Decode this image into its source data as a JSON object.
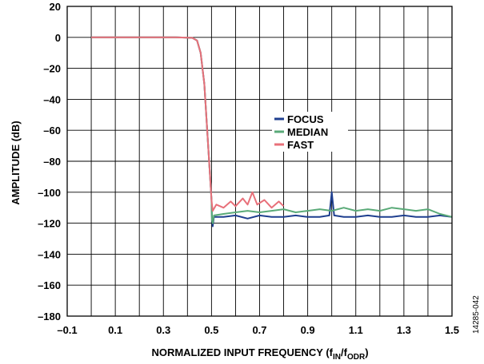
{
  "figure_id": "14285-042",
  "chart_data": {
    "type": "line",
    "xlabel": "NORMALIZED INPUT FREQUENCY (f",
    "xlabel_parts": [
      "NORMALIZED INPUT FREQUENCY (f",
      "IN",
      "/f",
      "ODR",
      ")"
    ],
    "ylabel": "AMPLITUDE (dB)",
    "xlim": [
      -0.1,
      1.5
    ],
    "ylim": [
      -180,
      20
    ],
    "grid": true,
    "legend_placement": "center-right",
    "x_ticks": [
      {
        "value": -0.1,
        "label": "–0.1"
      },
      {
        "value": 0.1,
        "label": "0.1"
      },
      {
        "value": 0.3,
        "label": "0.3"
      },
      {
        "value": 0.5,
        "label": "0.5"
      },
      {
        "value": 0.7,
        "label": "0.7"
      },
      {
        "value": 0.9,
        "label": "0.9"
      },
      {
        "value": 1.1,
        "label": "1.1"
      },
      {
        "value": 1.3,
        "label": "1.3"
      },
      {
        "value": 1.5,
        "label": "1.5"
      }
    ],
    "y_ticks": [
      {
        "value": 20,
        "label": "20"
      },
      {
        "value": 0,
        "label": "0"
      },
      {
        "value": -20,
        "label": "–20"
      },
      {
        "value": -40,
        "label": "–40"
      },
      {
        "value": -60,
        "label": "–60"
      },
      {
        "value": -80,
        "label": "–80"
      },
      {
        "value": -100,
        "label": "–100"
      },
      {
        "value": -120,
        "label": "–120"
      },
      {
        "value": -140,
        "label": "–140"
      },
      {
        "value": -160,
        "label": "–160"
      },
      {
        "value": -180,
        "label": "–180"
      }
    ],
    "x_grid_step": 0.1,
    "series": [
      {
        "name": "FOCUS",
        "color": "#1f3f8f",
        "points": [
          [
            0.0,
            0
          ],
          [
            0.35,
            0
          ],
          [
            0.42,
            -0.3
          ],
          [
            0.44,
            -2
          ],
          [
            0.455,
            -10
          ],
          [
            0.47,
            -30
          ],
          [
            0.48,
            -55
          ],
          [
            0.49,
            -80
          ],
          [
            0.5,
            -105
          ],
          [
            0.502,
            -118
          ],
          [
            0.505,
            -122
          ],
          [
            0.51,
            -116
          ],
          [
            0.55,
            -116
          ],
          [
            0.6,
            -115
          ],
          [
            0.65,
            -117
          ],
          [
            0.7,
            -115
          ],
          [
            0.75,
            -116
          ],
          [
            0.8,
            -116
          ],
          [
            0.85,
            -115
          ],
          [
            0.9,
            -116
          ],
          [
            0.95,
            -116
          ],
          [
            0.99,
            -115
          ],
          [
            1.0,
            -100
          ],
          [
            1.01,
            -115
          ],
          [
            1.05,
            -116
          ],
          [
            1.1,
            -116
          ],
          [
            1.15,
            -115
          ],
          [
            1.2,
            -116
          ],
          [
            1.25,
            -116
          ],
          [
            1.3,
            -115
          ],
          [
            1.35,
            -116
          ],
          [
            1.4,
            -116
          ],
          [
            1.45,
            -115
          ],
          [
            1.5,
            -116
          ]
        ]
      },
      {
        "name": "MEDIAN",
        "color": "#5aaa78",
        "points": [
          [
            0.0,
            0
          ],
          [
            0.35,
            0
          ],
          [
            0.42,
            -0.3
          ],
          [
            0.44,
            -2
          ],
          [
            0.455,
            -10
          ],
          [
            0.47,
            -30
          ],
          [
            0.48,
            -55
          ],
          [
            0.49,
            -80
          ],
          [
            0.5,
            -105
          ],
          [
            0.502,
            -118
          ],
          [
            0.505,
            -120
          ],
          [
            0.51,
            -115
          ],
          [
            0.55,
            -114
          ],
          [
            0.6,
            -113
          ],
          [
            0.65,
            -112
          ],
          [
            0.7,
            -113
          ],
          [
            0.75,
            -112
          ],
          [
            0.8,
            -111
          ],
          [
            0.85,
            -113
          ],
          [
            0.9,
            -112
          ],
          [
            0.95,
            -111
          ],
          [
            1.0,
            -112
          ],
          [
            1.05,
            -110
          ],
          [
            1.1,
            -112
          ],
          [
            1.15,
            -111
          ],
          [
            1.2,
            -112
          ],
          [
            1.25,
            -110
          ],
          [
            1.3,
            -111
          ],
          [
            1.35,
            -112
          ],
          [
            1.4,
            -111
          ],
          [
            1.45,
            -114
          ],
          [
            1.5,
            -116
          ]
        ]
      },
      {
        "name": "FAST",
        "color": "#e8707a",
        "points": [
          [
            0.0,
            0
          ],
          [
            0.35,
            0
          ],
          [
            0.42,
            -0.3
          ],
          [
            0.44,
            -2
          ],
          [
            0.455,
            -10
          ],
          [
            0.47,
            -30
          ],
          [
            0.48,
            -55
          ],
          [
            0.49,
            -80
          ],
          [
            0.5,
            -105
          ],
          [
            0.502,
            -108
          ],
          [
            0.505,
            -112
          ],
          [
            0.52,
            -108
          ],
          [
            0.55,
            -110
          ],
          [
            0.58,
            -106
          ],
          [
            0.6,
            -109
          ],
          [
            0.63,
            -104
          ],
          [
            0.65,
            -108
          ],
          [
            0.67,
            -100
          ],
          [
            0.69,
            -108
          ],
          [
            0.72,
            -105
          ],
          [
            0.75,
            -110
          ],
          [
            0.78,
            -106
          ],
          [
            0.8,
            -109
          ]
        ]
      }
    ]
  }
}
